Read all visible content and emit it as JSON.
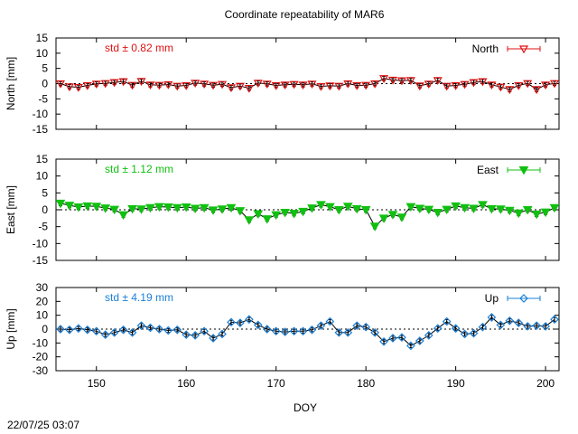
{
  "title": "Coordinate repeatability of MAR6",
  "timestamp": "22/07/25 03:07",
  "chart_data": {
    "type": "line",
    "title": "Coordinate repeatability of MAR6",
    "xlabel": "DOY",
    "xlim": [
      145.5,
      201.5
    ],
    "x_ticks": [
      150,
      160,
      170,
      180,
      190,
      200
    ],
    "x": [
      146,
      147,
      148,
      149,
      150,
      151,
      152,
      153,
      154,
      155,
      156,
      157,
      158,
      159,
      160,
      161,
      162,
      163,
      164,
      165,
      166,
      167,
      168,
      169,
      170,
      171,
      172,
      173,
      174,
      175,
      176,
      177,
      178,
      179,
      180,
      181,
      182,
      183,
      184,
      185,
      186,
      187,
      188,
      189,
      190,
      191,
      192,
      193,
      194,
      195,
      196,
      197,
      198,
      199,
      200,
      201
    ],
    "panels": [
      {
        "name": "North",
        "ylabel": "North [mm]",
        "ylim": [
          -15,
          15
        ],
        "y_ticks": [
          -15,
          -10,
          -5,
          0,
          5,
          10,
          15
        ],
        "std_label": "std ± 0.82 mm",
        "color": "#e01010",
        "marker": "triangle-down-open",
        "values": [
          0.0,
          -1.0,
          -1.2,
          -0.6,
          -0.1,
          0.1,
          0.4,
          0.7,
          -0.5,
          0.8,
          -0.4,
          -0.5,
          -0.3,
          -0.8,
          -0.6,
          0.2,
          -0.1,
          -0.5,
          -0.2,
          -1.3,
          -0.8,
          -1.5,
          0.2,
          -0.1,
          -0.6,
          -0.4,
          -0.2,
          -0.4,
          -0.1,
          -0.9,
          -0.7,
          -0.8,
          0.0,
          -0.6,
          -0.5,
          0.0,
          1.7,
          1.2,
          1.0,
          1.1,
          -0.7,
          -0.1,
          1.1,
          -0.8,
          -0.6,
          -0.2,
          0.4,
          0.7,
          -0.4,
          -1.1,
          -1.9,
          -0.6,
          0.1,
          -1.9,
          -0.4,
          0.1
        ]
      },
      {
        "name": "East",
        "ylabel": "East [mm]",
        "ylim": [
          -15,
          15
        ],
        "y_ticks": [
          -15,
          -10,
          -5,
          0,
          5,
          10,
          15
        ],
        "std_label": "std ± 1.12 mm",
        "color": "#10c010",
        "marker": "triangle-down-filled",
        "values": [
          1.9,
          1.3,
          0.8,
          1.1,
          1.0,
          0.5,
          0.1,
          -1.5,
          0.3,
          0.2,
          0.6,
          0.9,
          0.8,
          0.6,
          0.8,
          0.4,
          0.6,
          -0.1,
          0.2,
          0.6,
          -0.3,
          -3.0,
          -1.2,
          -2.7,
          -1.5,
          -0.8,
          -1.1,
          -0.5,
          0.5,
          1.5,
          0.9,
          0.0,
          1.0,
          0.3,
          0.0,
          -4.9,
          -2.5,
          -1.4,
          -2.2,
          0.9,
          0.4,
          0.1,
          -0.8,
          0.1,
          1.1,
          0.6,
          0.4,
          1.5,
          0.3,
          0.2,
          -0.2,
          -1.0,
          0.0,
          -1.3,
          -0.7,
          0.6
        ]
      },
      {
        "name": "Up",
        "ylabel": "Up [mm]",
        "ylim": [
          -30,
          30
        ],
        "y_ticks": [
          -30,
          -20,
          -10,
          0,
          10,
          20,
          30
        ],
        "std_label": "std ± 4.19 mm",
        "color": "#1a7fd8",
        "marker": "diamond-open",
        "values": [
          0.0,
          -0.5,
          0.5,
          -0.5,
          -1.5,
          -4.0,
          -2.5,
          -0.5,
          -2.5,
          2.5,
          1.0,
          0.0,
          -1.0,
          -0.5,
          -4.0,
          -4.5,
          -1.5,
          -6.5,
          -3.5,
          5.0,
          4.5,
          7.0,
          3.0,
          0.0,
          -1.5,
          -2.0,
          -1.5,
          -1.5,
          -0.5,
          2.5,
          5.5,
          -2.5,
          -2.5,
          2.5,
          1.5,
          -2.5,
          -9.0,
          -6.5,
          -6.0,
          -12.0,
          -8.5,
          -4.5,
          0.5,
          5.5,
          0.5,
          -3.5,
          -3.0,
          1.5,
          8.5,
          3.0,
          6.0,
          4.5,
          2.0,
          2.5,
          2.0,
          7.0
        ]
      }
    ]
  }
}
